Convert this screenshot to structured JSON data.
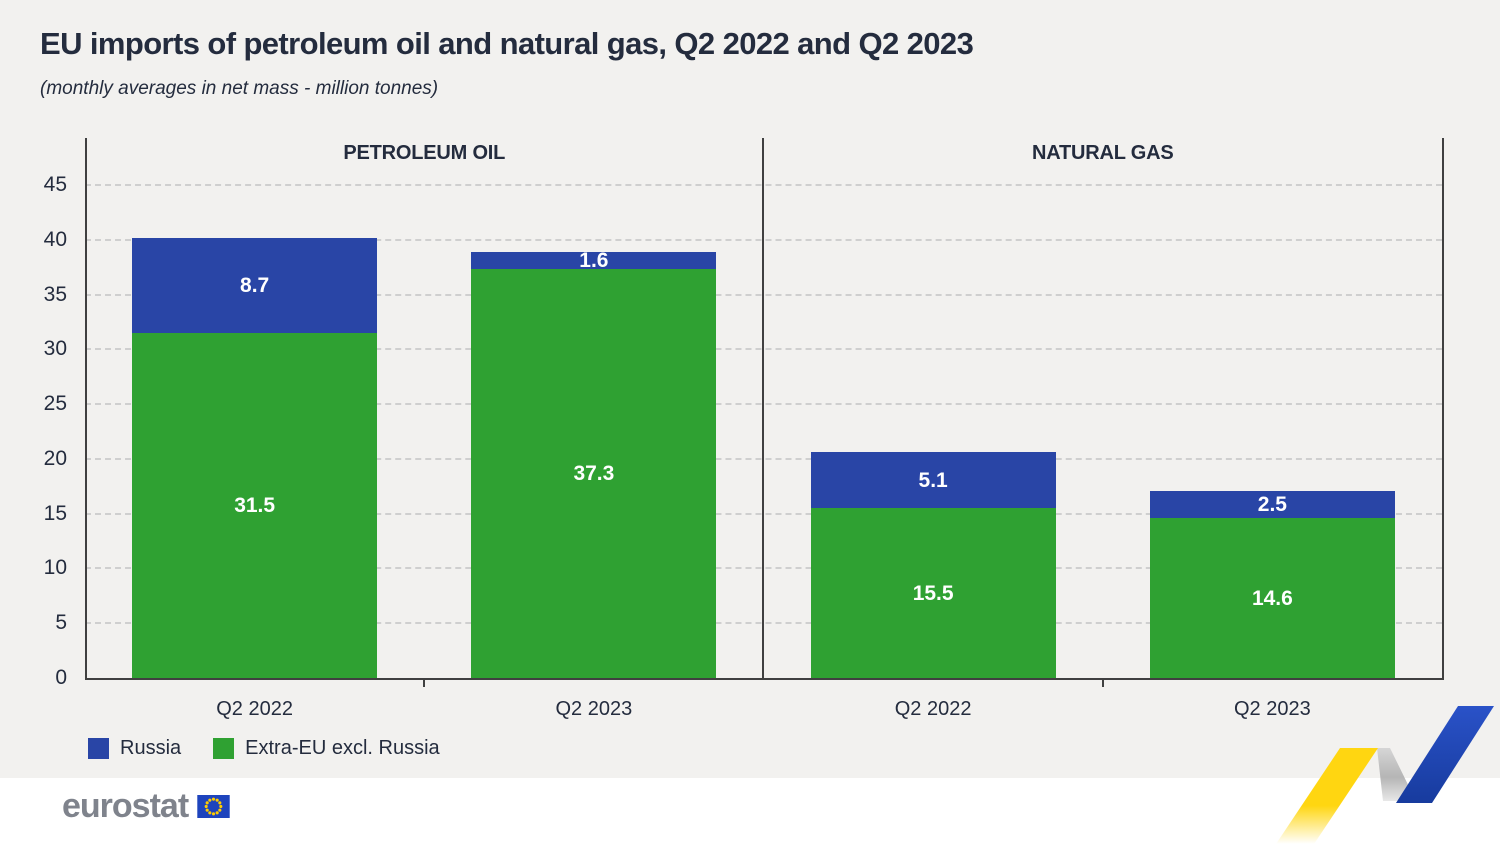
{
  "page": {
    "title": "EU imports of petroleum oil and natural gas, Q2 2022 and Q2 2023",
    "subtitle": "(monthly averages in net mass - million tonnes)"
  },
  "chart_data": {
    "type": "bar",
    "stacked": true,
    "title": "EU imports of petroleum oil and natural gas, Q2 2022 and Q2 2023",
    "subtitle": "(monthly averages in net mass - million tonnes)",
    "ylim": [
      0,
      49
    ],
    "yticks": [
      0,
      5,
      10,
      15,
      20,
      25,
      30,
      35,
      40,
      45
    ],
    "grid": "horizontal-dashed",
    "legend_position": "bottom-left",
    "stack_order": [
      "Extra-EU excl. Russia",
      "Russia"
    ],
    "series": [
      {
        "name": "Russia",
        "color": "#2945A6"
      },
      {
        "name": "Extra-EU excl. Russia",
        "color": "#2FA132"
      }
    ],
    "panels": [
      {
        "label": "PETROLEUM OIL",
        "categories": [
          "Q2 2022",
          "Q2 2023"
        ],
        "values": {
          "Russia": [
            8.7,
            1.6
          ],
          "Extra-EU excl. Russia": [
            31.5,
            37.3
          ]
        }
      },
      {
        "label": "NATURAL GAS",
        "categories": [
          "Q2 2022",
          "Q2 2023"
        ],
        "values": {
          "Russia": [
            5.1,
            2.5
          ],
          "Extra-EU excl. Russia": [
            15.5,
            14.6
          ]
        }
      }
    ]
  },
  "legend": {
    "items": [
      {
        "label": "Russia",
        "color": "#2945A6"
      },
      {
        "label": "Extra-EU excl. Russia",
        "color": "#2FA132"
      }
    ]
  },
  "footer": {
    "logo_text": "eurostat"
  },
  "colors": {
    "bg": "#F2F1EF",
    "footer-bg": "#FFFFFF",
    "text": "#242C3E",
    "axis": "#404040",
    "grid": "#CFCFCF",
    "bar-label": "#FFFFFF",
    "russia-blue": "#2945A6",
    "green": "#2FA132",
    "logo-gray": "#7F838C",
    "flag-blue": "#1E44BD",
    "star-yellow": "#FFCC00",
    "ribbon-yellow": "#FFD611",
    "ribbon-blue": "#2046B4"
  }
}
